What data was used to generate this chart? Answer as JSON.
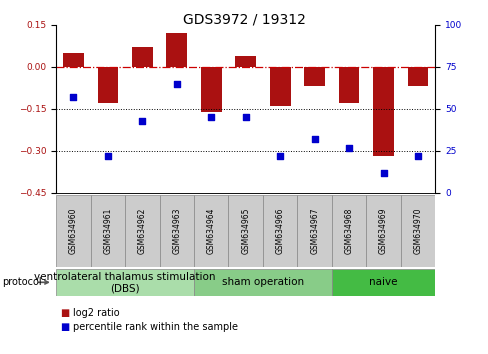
{
  "title": "GDS3972 / 19312",
  "samples": [
    "GSM634960",
    "GSM634961",
    "GSM634962",
    "GSM634963",
    "GSM634964",
    "GSM634965",
    "GSM634966",
    "GSM634967",
    "GSM634968",
    "GSM634969",
    "GSM634970"
  ],
  "log2_ratio": [
    0.05,
    -0.13,
    0.07,
    0.12,
    -0.16,
    0.04,
    -0.14,
    -0.07,
    -0.13,
    -0.32,
    -0.07
  ],
  "percentile_rank": [
    57,
    22,
    43,
    65,
    45,
    45,
    22,
    32,
    27,
    12,
    22
  ],
  "bar_color": "#aa1111",
  "dot_color": "#0000cc",
  "left_ylim": [
    -0.45,
    0.15
  ],
  "left_yticks": [
    0.15,
    0.0,
    -0.15,
    -0.3,
    -0.45
  ],
  "right_ylim": [
    0,
    100
  ],
  "right_yticks": [
    0,
    25,
    50,
    75,
    100
  ],
  "groups": [
    {
      "label": "ventrolateral thalamus stimulation\n(DBS)",
      "start": 0,
      "end": 3,
      "color": "#aaddaa"
    },
    {
      "label": "sham operation",
      "start": 4,
      "end": 7,
      "color": "#88cc88"
    },
    {
      "label": "naive",
      "start": 8,
      "end": 10,
      "color": "#44bb44"
    }
  ],
  "protocol_label": "protocol",
  "legend_bar_label": "log2 ratio",
  "legend_dot_label": "percentile rank within the sample",
  "hline_color": "#cc0000",
  "dotted_line_color": "#000000",
  "background_color": "#ffffff",
  "sample_box_color": "#cccccc",
  "bar_width": 0.6,
  "title_fontsize": 10,
  "tick_fontsize": 6.5,
  "legend_fontsize": 7,
  "group_fontsize": 7.5,
  "sample_fontsize": 5.5
}
